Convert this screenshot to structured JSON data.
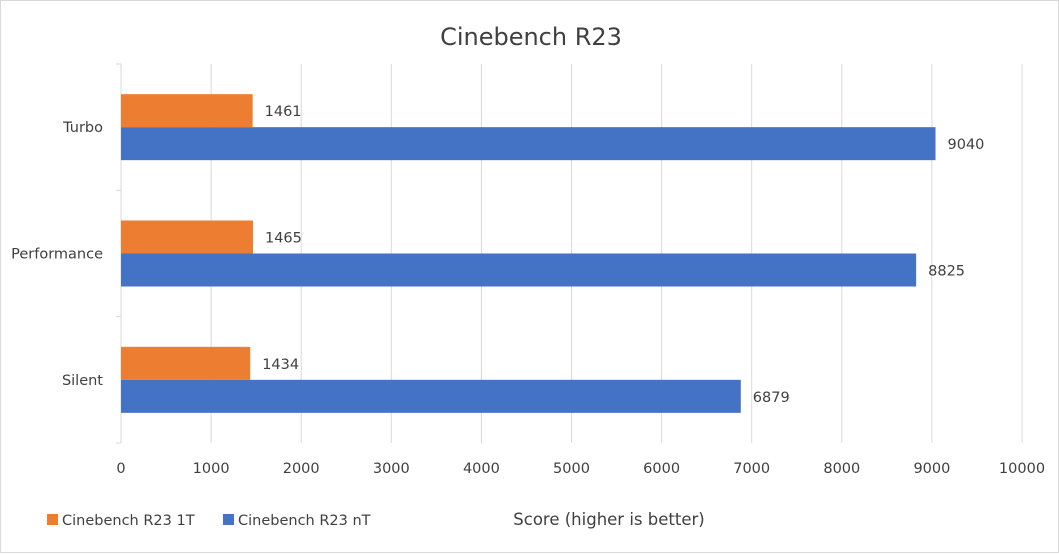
{
  "chart_data": {
    "type": "bar",
    "orientation": "horizontal",
    "title": "Cinebench R23",
    "xlabel": "Score (higher is better)",
    "ylabel": "",
    "xlim": [
      0,
      10000
    ],
    "xticks": [
      0,
      1000,
      2000,
      3000,
      4000,
      5000,
      6000,
      7000,
      8000,
      9000,
      10000
    ],
    "categories": [
      "Turbo",
      "Performance",
      "Silent"
    ],
    "series": [
      {
        "name": "Cinebench R23 1T",
        "values": [
          1461,
          1465,
          1434
        ],
        "color": "#ed7d31"
      },
      {
        "name": "Cinebench R23 nT",
        "values": [
          9040,
          8825,
          6879
        ],
        "color": "#4472c4"
      }
    ],
    "grid": true,
    "legend_position": "bottom-left",
    "data_labels": true
  }
}
